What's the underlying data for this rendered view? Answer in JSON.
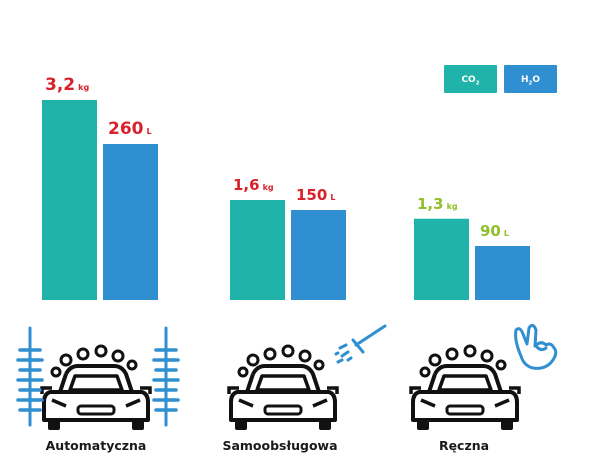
{
  "chart_data": {
    "type": "bar",
    "categories": [
      "Automatyczna",
      "Samoobsługowa",
      "Ręczna"
    ],
    "series": [
      {
        "name": "CO2",
        "legend_main": "CO",
        "legend_sub": "2",
        "color": "#1fb3a9",
        "values": [
          3.2,
          1.6,
          1.3
        ],
        "display": [
          "3,2",
          "1,6",
          "1,3"
        ],
        "unit": "kg"
      },
      {
        "name": "H2O",
        "legend_main": "H",
        "legend_sub": "2",
        "legend_tail": "O",
        "color": "#2f8fd0",
        "values": [
          260,
          150,
          90
        ],
        "display": [
          "260",
          "150",
          "90"
        ],
        "unit": "L"
      }
    ],
    "label_colors": [
      "#d9212c",
      "#d9212c",
      "#8fbf2a"
    ],
    "icon_names": [
      "car-wash-brushes-icon",
      "car-wash-pressure-sprayer-icon",
      "car-wash-hand-icon"
    ],
    "legend_position": "top-right",
    "grid": false
  }
}
